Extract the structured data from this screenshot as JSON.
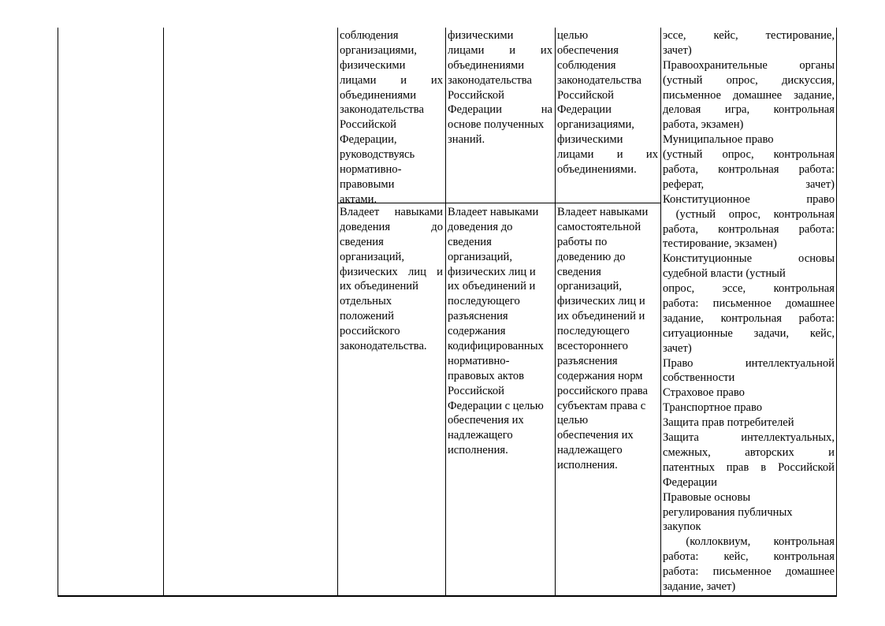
{
  "table": {
    "row1": {
      "col3": [
        "соблюдения",
        "организациями,",
        "физическими",
        "лицами и их",
        "объединениями",
        "законодательства",
        "Российской",
        "Федерации,",
        "руководствуясь",
        "нормативно-",
        "правовыми",
        "актами."
      ],
      "col4": [
        "физическими",
        "лицами и их",
        "объединениями",
        "законодательства",
        "Российской",
        "Федерации на",
        "основе полученных",
        "знаний."
      ],
      "col5": [
        "целью",
        "обеспечения",
        "соблюдения",
        "законодательства",
        "Российской",
        "Федерации",
        "организациями,",
        "физическими",
        "лицами и их",
        "объединениями."
      ]
    },
    "row2": {
      "col3": [
        "Владеет навыками",
        "доведения до",
        "сведения",
        "организаций,",
        "физических лиц и",
        "их объединений",
        "отдельных",
        "положений",
        "российского",
        "законодательства."
      ],
      "col4": [
        "Владеет навыками",
        "доведения до",
        "сведения",
        "организаций,",
        "физических лиц и",
        "их объединений и",
        "последующего",
        "разъяснения",
        "содержания",
        "кодифицированных",
        "нормативно-",
        "правовых актов",
        "Российской",
        "Федерации с целью",
        "обеспечения их",
        "надлежащего",
        "исполнения."
      ],
      "col5": [
        "Владеет навыками",
        "самостоятельной",
        "работы по",
        "доведению до",
        "сведения",
        "организаций,",
        "физических лиц и",
        "их объединений и",
        "последующего",
        "всестороннего",
        "разъяснения",
        "содержания норм",
        "российского права",
        "субъектам права с",
        "целью",
        "обеспечения их",
        "надлежащего",
        "исполнения."
      ]
    },
    "col6": [
      "эссе, кейс, тестирование,",
      "зачет)",
      "Правоохранительные органы",
      "(устный опрос, дискуссия,",
      "письменное домашнее задание,",
      "деловая игра, контрольная",
      "работа, экзамен)",
      "Муниципальное право",
      "(устный опрос, контрольная",
      "работа, контрольная работа:",
      "реферат, зачет)",
      "Конституционное право",
      " (устный опрос, контрольная",
      "работа, контрольная работа:",
      "тестирование, экзамен)",
      "Конституционные основы",
      "судебной власти (устный",
      "опрос, эссе, контрольная",
      "работа: письменное домашнее",
      "задание, контрольная работа:",
      "ситуационные задачи, кейс,",
      "зачет)",
      "Право интеллектуальной",
      "собственности",
      "Страховое право",
      "Транспортное право",
      "Защита прав потребителей",
      "Защита интеллектуальных,",
      "смежных, авторских и",
      "патентных прав в Российской",
      "Федерации",
      "Правовые основы",
      "регулирования публичных",
      "закупок",
      " (коллоквиум, контрольная",
      "работа: кейс, контрольная",
      "работа: письменное домашнее",
      "задание, зачет)"
    ]
  }
}
